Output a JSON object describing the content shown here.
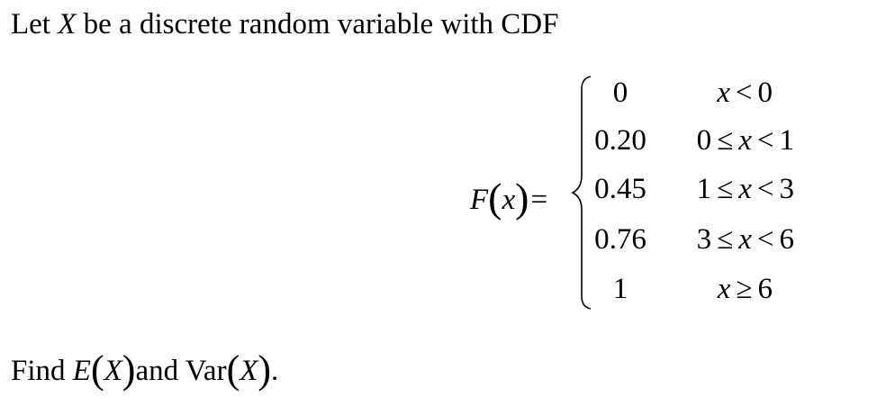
{
  "intro": {
    "text_before": "Let ",
    "variable": "X",
    "text_after": " be a discrete random variable with CDF"
  },
  "equation": {
    "lhs_func": "F",
    "lhs_var": "x",
    "equals": "=",
    "cases": [
      {
        "value": "0",
        "condition": "x < 0"
      },
      {
        "value": "0.20",
        "condition": "0 ≤ x < 1"
      },
      {
        "value": "0.45",
        "condition": "1 ≤ x < 3"
      },
      {
        "value": "0.76",
        "condition": "3 ≤ x < 6"
      },
      {
        "value": "1",
        "condition": "x ≥ 6"
      }
    ]
  },
  "question": {
    "prefix": "Find ",
    "e_symbol": "E",
    "e_arg": "X",
    "connector": "and ",
    "var_symbol": "Var",
    "var_arg": "X",
    "suffix": "."
  }
}
